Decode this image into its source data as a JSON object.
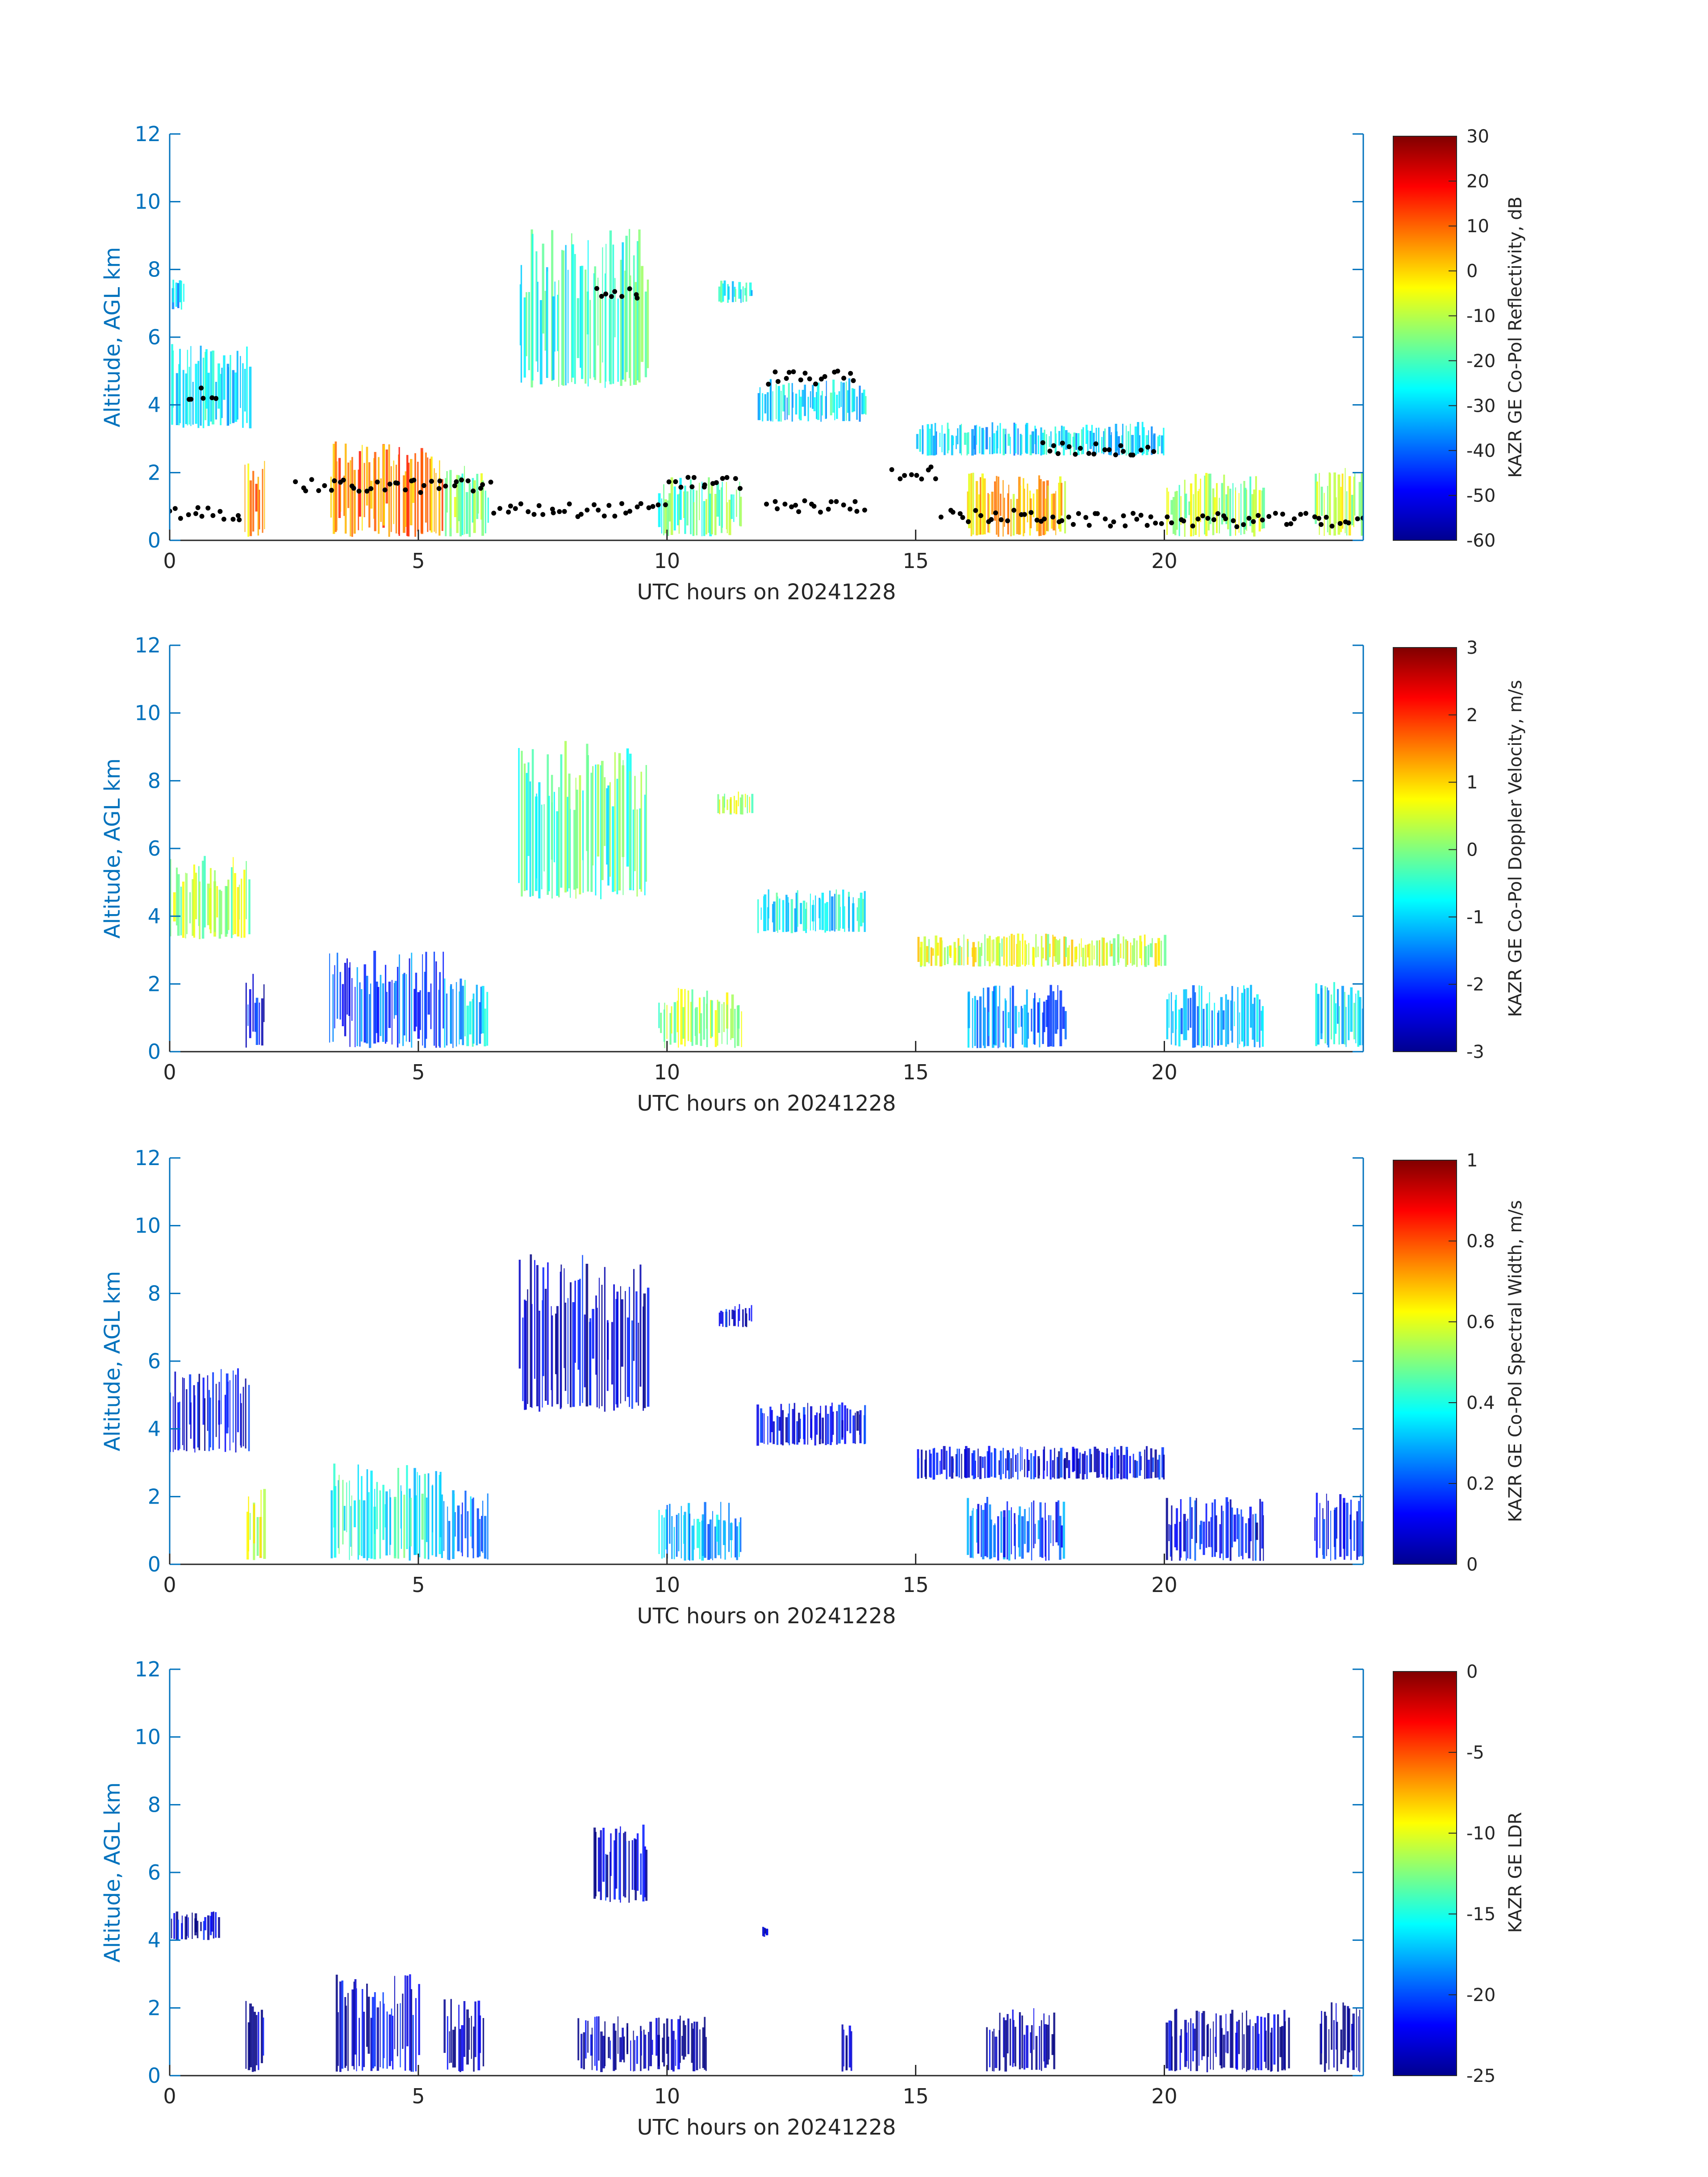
{
  "figure": {
    "xlabel": "UTC hours on 20241228",
    "ylabel": "Altitude, AGL km",
    "xticks": [
      "0",
      "5",
      "10",
      "15",
      "20"
    ],
    "yticks": [
      "0",
      "2",
      "4",
      "6",
      "8",
      "10",
      "12"
    ],
    "axis_color": "#0072BD",
    "text_color": "#262626",
    "colormap": "jet"
  },
  "chart_data": [
    {
      "type": "heatmap",
      "variable": "KAZR GE Co-Pol Reflectivity, dB",
      "colorbar": {
        "label": "KAZR GE Co-Pol Reflectivity, dB",
        "min": -60,
        "max": 30,
        "ticks": [
          "30",
          "20",
          "10",
          "0",
          "-10",
          "-20",
          "-30",
          "-40",
          "-50",
          "-60"
        ]
      },
      "xlabel": "UTC hours on 20241228",
      "ylabel": "Altitude, AGL km",
      "xlim": [
        0,
        24
      ],
      "ylim": [
        0,
        12
      ],
      "cloud_regions": [
        {
          "x": [
            0,
            1.6
          ],
          "y": [
            3.3,
            5.8
          ],
          "value": -28
        },
        {
          "x": [
            0.0,
            0.3
          ],
          "y": [
            6.8,
            7.7
          ],
          "value": -30
        },
        {
          "x": [
            7.0,
            9.6
          ],
          "y": [
            4.5,
            9.2
          ],
          "value": -22
        },
        {
          "x": [
            11.0,
            11.7
          ],
          "y": [
            7.0,
            7.7
          ],
          "value": -25
        },
        {
          "x": [
            11.8,
            14.0
          ],
          "y": [
            3.5,
            4.8
          ],
          "value": -28
        },
        {
          "x": [
            15.0,
            20.0
          ],
          "y": [
            2.5,
            3.5
          ],
          "value": -30
        },
        {
          "x": [
            1.5,
            1.9
          ],
          "y": [
            0.1,
            2.4
          ],
          "value": 5
        },
        {
          "x": [
            3.2,
            5.5
          ],
          "y": [
            0.1,
            3.0
          ],
          "value": 8
        },
        {
          "x": [
            5.5,
            6.4
          ],
          "y": [
            0.1,
            2.2
          ],
          "value": -15
        },
        {
          "x": [
            9.8,
            11.5
          ],
          "y": [
            0.1,
            1.9
          ],
          "value": -18
        },
        {
          "x": [
            16.0,
            18.0
          ],
          "y": [
            0.1,
            2.0
          ],
          "value": 0
        },
        {
          "x": [
            20.0,
            22.0
          ],
          "y": [
            0.1,
            2.0
          ],
          "value": -12
        },
        {
          "x": [
            23.0,
            24.0
          ],
          "y": [
            0.1,
            2.2
          ],
          "value": -10
        }
      ],
      "cloud_base_points": [
        {
          "x": [
            0.0,
            1.5
          ],
          "y": 0.8
        },
        {
          "x": [
            0.3,
            1.0
          ],
          "y": 4.3
        },
        {
          "x": [
            2.5,
            6.5
          ],
          "y": 1.6
        },
        {
          "x": [
            6.5,
            10.0
          ],
          "y": 0.9
        },
        {
          "x": [
            8.5,
            9.5
          ],
          "y": 7.3
        },
        {
          "x": [
            10.0,
            11.5
          ],
          "y": 1.7
        },
        {
          "x": [
            12.0,
            13.8
          ],
          "y": 4.8
        },
        {
          "x": [
            12.0,
            14.0
          ],
          "y": 1.0
        },
        {
          "x": [
            14.5,
            15.5
          ],
          "y": 2.0
        },
        {
          "x": [
            15.5,
            18.0
          ],
          "y": 0.7
        },
        {
          "x": [
            18.0,
            24.0
          ],
          "y": 0.6
        },
        {
          "x": [
            17.5,
            19.8
          ],
          "y": 2.7
        }
      ]
    },
    {
      "type": "heatmap",
      "variable": "KAZR GE Co-Pol Doppler Velocity, m/s",
      "colorbar": {
        "label": "KAZR GE Co-Pol Doppler Velocity, m/s",
        "min": -3,
        "max": 3,
        "ticks": [
          "3",
          "2",
          "1",
          "0",
          "-1",
          "-2",
          "-3"
        ]
      },
      "xlabel": "UTC hours on 20241228",
      "ylabel": "Altitude, AGL km",
      "xlim": [
        0,
        24
      ],
      "ylim": [
        0,
        12
      ],
      "cloud_regions": [
        {
          "x": [
            0,
            1.6
          ],
          "y": [
            3.3,
            5.8
          ],
          "value": 0.2
        },
        {
          "x": [
            7.0,
            9.6
          ],
          "y": [
            4.5,
            9.2
          ],
          "value": -0.3
        },
        {
          "x": [
            11.0,
            11.7
          ],
          "y": [
            7.0,
            7.7
          ],
          "value": 0.3
        },
        {
          "x": [
            11.8,
            14.0
          ],
          "y": [
            3.5,
            4.8
          ],
          "value": -0.8
        },
        {
          "x": [
            15.0,
            20.0
          ],
          "y": [
            2.5,
            3.5
          ],
          "value": 0.5
        },
        {
          "x": [
            1.5,
            1.9
          ],
          "y": [
            0.1,
            2.4
          ],
          "value": -2.3
        },
        {
          "x": [
            3.2,
            5.5
          ],
          "y": [
            0.1,
            3.0
          ],
          "value": -1.8
        },
        {
          "x": [
            5.5,
            6.4
          ],
          "y": [
            0.1,
            2.2
          ],
          "value": -1.0
        },
        {
          "x": [
            9.8,
            11.5
          ],
          "y": [
            0.1,
            1.9
          ],
          "value": 0.2
        },
        {
          "x": [
            16.0,
            18.0
          ],
          "y": [
            0.1,
            2.0
          ],
          "value": -1.5
        },
        {
          "x": [
            20.0,
            22.0
          ],
          "y": [
            0.1,
            2.0
          ],
          "value": -1.2
        },
        {
          "x": [
            23.0,
            24.0
          ],
          "y": [
            0.1,
            2.2
          ],
          "value": -0.8
        }
      ]
    },
    {
      "type": "heatmap",
      "variable": "KAZR GE Co-Pol Spectral Width, m/s",
      "colorbar": {
        "label": "KAZR GE Co-Pol Spectral Width, m/s",
        "min": 0,
        "max": 1,
        "ticks": [
          "1",
          "0.8",
          "0.6",
          "0.4",
          "0.2",
          "0"
        ]
      },
      "xlabel": "UTC hours on 20241228",
      "ylabel": "Altitude, AGL km",
      "xlim": [
        0,
        24
      ],
      "ylim": [
        0,
        12
      ],
      "cloud_regions": [
        {
          "x": [
            0,
            1.6
          ],
          "y": [
            3.3,
            5.8
          ],
          "value": 0.1
        },
        {
          "x": [
            7.0,
            9.6
          ],
          "y": [
            4.5,
            9.2
          ],
          "value": 0.08
        },
        {
          "x": [
            11.0,
            11.7
          ],
          "y": [
            7.0,
            7.7
          ],
          "value": 0.1
        },
        {
          "x": [
            11.8,
            14.0
          ],
          "y": [
            3.5,
            4.8
          ],
          "value": 0.1
        },
        {
          "x": [
            15.0,
            20.0
          ],
          "y": [
            2.5,
            3.5
          ],
          "value": 0.1
        },
        {
          "x": [
            1.5,
            1.9
          ],
          "y": [
            0.1,
            2.4
          ],
          "value": 0.6
        },
        {
          "x": [
            3.2,
            5.5
          ],
          "y": [
            0.1,
            3.0
          ],
          "value": 0.4
        },
        {
          "x": [
            5.5,
            6.4
          ],
          "y": [
            0.1,
            2.2
          ],
          "value": 0.25
        },
        {
          "x": [
            9.8,
            11.5
          ],
          "y": [
            0.1,
            1.9
          ],
          "value": 0.3
        },
        {
          "x": [
            16.0,
            18.0
          ],
          "y": [
            0.1,
            2.0
          ],
          "value": 0.2
        },
        {
          "x": [
            20.0,
            22.0
          ],
          "y": [
            0.1,
            2.0
          ],
          "value": 0.12
        },
        {
          "x": [
            23.0,
            24.0
          ],
          "y": [
            0.1,
            2.2
          ],
          "value": 0.1
        }
      ]
    },
    {
      "type": "heatmap",
      "variable": "KAZR GE LDR",
      "colorbar": {
        "label": "KAZR GE LDR",
        "min": -25,
        "max": 0,
        "ticks": [
          "0",
          "-5",
          "-10",
          "-15",
          "-20",
          "-25"
        ]
      },
      "xlabel": "UTC hours on 20241228",
      "ylabel": "Altitude, AGL km",
      "xlim": [
        0,
        24
      ],
      "ylim": [
        0,
        12
      ],
      "cloud_regions": [
        {
          "x": [
            0.0,
            1.0
          ],
          "y": [
            4.0,
            4.9
          ],
          "value": -23
        },
        {
          "x": [
            8.5,
            9.6
          ],
          "y": [
            5.1,
            7.5
          ],
          "value": -23
        },
        {
          "x": [
            11.9,
            12.0
          ],
          "y": [
            4.1,
            4.4
          ],
          "value": -23
        },
        {
          "x": [
            1.5,
            1.9
          ],
          "y": [
            0.1,
            2.4
          ],
          "value": -24
        },
        {
          "x": [
            3.3,
            5.0
          ],
          "y": [
            0.1,
            3.0
          ],
          "value": -23
        },
        {
          "x": [
            5.5,
            6.3
          ],
          "y": [
            0.1,
            2.3
          ],
          "value": -24
        },
        {
          "x": [
            8.2,
            10.8
          ],
          "y": [
            0.1,
            1.8
          ],
          "value": -24
        },
        {
          "x": [
            13.5,
            13.7
          ],
          "y": [
            0.1,
            1.6
          ],
          "value": -24
        },
        {
          "x": [
            16.4,
            17.8
          ],
          "y": [
            0.1,
            2.0
          ],
          "value": -24
        },
        {
          "x": [
            20.0,
            22.5
          ],
          "y": [
            0.1,
            2.0
          ],
          "value": -24
        },
        {
          "x": [
            23.1,
            24.0
          ],
          "y": [
            0.1,
            2.2
          ],
          "value": -24
        }
      ]
    }
  ]
}
